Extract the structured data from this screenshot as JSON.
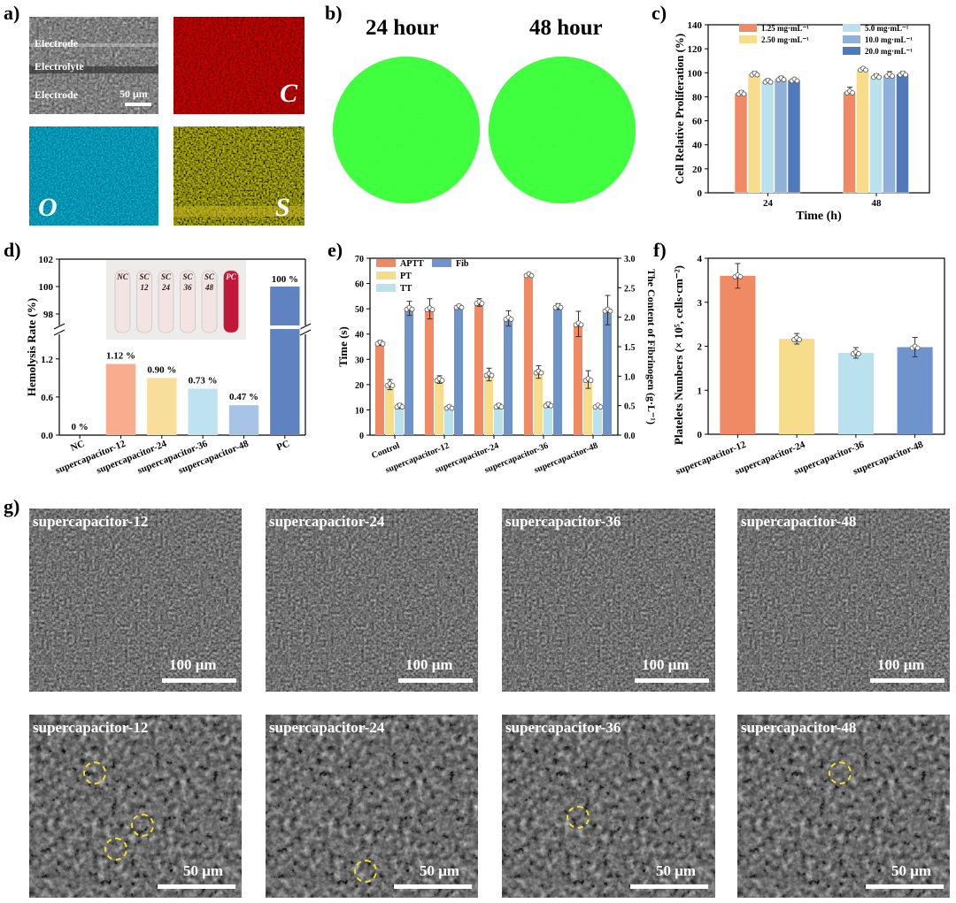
{
  "panels": {
    "a": {
      "label": "a)",
      "layers": [
        "Electrode",
        "Electrolyte",
        "Electrode"
      ],
      "scale": "50 μm",
      "elements": [
        "C",
        "O",
        "S"
      ]
    },
    "b": {
      "label": "b)",
      "titles": [
        "24 hour",
        "48 hour"
      ]
    },
    "c": {
      "label": "c)",
      "type": "bar",
      "xlabel": "Time (h)",
      "ylabel": "Cell Relative Proliferation (%)",
      "ylim": [
        0,
        140
      ],
      "yticks": [
        0,
        20,
        40,
        60,
        80,
        100,
        120,
        140
      ],
      "categories": [
        "24",
        "48"
      ],
      "series": [
        {
          "name": "1.25 mg·mL⁻¹",
          "values": [
            83,
            84
          ],
          "err": [
            2,
            4
          ],
          "color": "#ef8a64"
        },
        {
          "name": "2.50 mg·mL⁻¹",
          "values": [
            99,
            103
          ],
          "err": [
            2,
            1
          ],
          "color": "#f7dc8c"
        },
        {
          "name": "5.0 mg·mL⁻¹",
          "values": [
            93,
            97
          ],
          "err": [
            2,
            2
          ],
          "color": "#b9e1ee"
        },
        {
          "name": "10.0 mg·mL⁻¹",
          "values": [
            95,
            98
          ],
          "err": [
            2,
            3
          ],
          "color": "#8fb1d9"
        },
        {
          "name": "20.0 mg·mL⁻¹",
          "values": [
            94,
            99
          ],
          "err": [
            1,
            2
          ],
          "color": "#4f79b8"
        }
      ],
      "legend_position": "top"
    },
    "d": {
      "label": "d)",
      "type": "bar",
      "ylabel": "Hemolysis Rate (%)",
      "yticks_low": [
        0.0,
        0.6,
        1.2
      ],
      "yticks_high": [
        98,
        100,
        102
      ],
      "categories": [
        "NC",
        "supercapacitor-12",
        "supercapacitor-24",
        "supercapacitor-36",
        "supercapacitor-48",
        "PC"
      ],
      "values": [
        0,
        1.12,
        0.9,
        0.73,
        0.47,
        100
      ],
      "value_labels": [
        "0 %",
        "1.12 %",
        "0.90 %",
        "0.73 %",
        "0.47 %",
        "100 %"
      ],
      "colors": [
        "#ffffff",
        "#f9ad8f",
        "#f8de9a",
        "#bfe2f0",
        "#a7c3e6",
        "#5f83c0"
      ],
      "inset_tubes": [
        "NC",
        "SC 12",
        "SC 24",
        "SC 36",
        "SC 48",
        "PC"
      ]
    },
    "e": {
      "label": "e)",
      "type": "bar",
      "ylabel_left": "Time (s)",
      "ylabel_right": "The Content of Fibrinogen  (g·L⁻¹)",
      "ylim_left": [
        0,
        70
      ],
      "ylim_right": [
        0,
        3.0
      ],
      "yticks_left": [
        0,
        10,
        20,
        30,
        40,
        50,
        60,
        70
      ],
      "yticks_right": [
        "0.0",
        "0.5",
        "1.0",
        "1.5",
        "2.0",
        "2.5",
        "3.0"
      ],
      "categories": [
        "Control",
        "supercapacitor-12",
        "supercapacitor-24",
        "supercapacitor-36",
        "supercapacitor-48"
      ],
      "series": [
        {
          "name": "APTT",
          "values": [
            36.5,
            50,
            52.5,
            63.5,
            44
          ],
          "err": [
            1,
            4,
            1.5,
            0.5,
            5
          ],
          "color": "#ef8a64",
          "axis": "left"
        },
        {
          "name": "PT",
          "values": [
            20,
            22,
            24,
            25,
            22
          ],
          "err": [
            2,
            1.5,
            2.5,
            2.5,
            3.5
          ],
          "color": "#f7dc8c",
          "axis": "left"
        },
        {
          "name": "TT",
          "values": [
            11.5,
            11,
            11.5,
            12,
            11.5
          ],
          "err": [
            1,
            0.5,
            1,
            1,
            0.5
          ],
          "color": "#b9e1ee",
          "axis": "left"
        },
        {
          "name": "Fib",
          "values": [
            2.15,
            2.18,
            1.98,
            2.18,
            2.12
          ],
          "err": [
            0.12,
            0.03,
            0.13,
            0.05,
            0.25
          ],
          "color": "#6f94cc",
          "axis": "right"
        }
      ]
    },
    "f": {
      "label": "f)",
      "type": "bar",
      "ylabel": "Platelets Numbers (× 10⁵, cells·cm⁻²)",
      "ylim": [
        0,
        4
      ],
      "yticks": [
        0,
        1,
        2,
        3,
        4
      ],
      "categories": [
        "supercapacitor-12",
        "supercapacitor-24",
        "supercapacitor-36",
        "supercapacitor-48"
      ],
      "values": [
        3.6,
        2.17,
        1.85,
        1.98
      ],
      "err": [
        0.28,
        0.12,
        0.12,
        0.22
      ],
      "colors": [
        "#ef8a64",
        "#f7dc8c",
        "#b9e1ee",
        "#6f94cc"
      ]
    },
    "g": {
      "label": "g)",
      "row1": {
        "captions": [
          "supercapacitor-12",
          "supercapacitor-24",
          "supercapacitor-36",
          "supercapacitor-48"
        ],
        "scale": "100 μm"
      },
      "row2": {
        "captions": [
          "supercapacitor-12",
          "supercapacitor-24",
          "supercapacitor-36",
          "supercapacitor-48"
        ],
        "scale": "50 μm"
      }
    }
  }
}
